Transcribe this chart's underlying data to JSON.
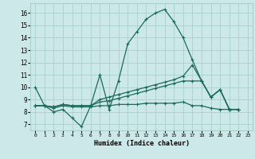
{
  "xlabel": "Humidex (Indice chaleur)",
  "bg_color": "#cce8e8",
  "grid_color": "#aacfcf",
  "line_color": "#1a6b5a",
  "xlim": [
    -0.5,
    23.5
  ],
  "ylim": [
    6.5,
    16.8
  ],
  "xticks": [
    0,
    1,
    2,
    3,
    4,
    5,
    6,
    7,
    8,
    9,
    10,
    11,
    12,
    13,
    14,
    15,
    16,
    17,
    18,
    19,
    20,
    21,
    22,
    23
  ],
  "yticks": [
    7,
    8,
    9,
    10,
    11,
    12,
    13,
    14,
    15,
    16
  ],
  "line1_x": [
    0,
    1,
    2,
    3,
    4,
    5,
    6,
    7,
    8,
    9,
    10,
    11,
    12,
    13,
    14,
    15,
    16,
    17,
    18,
    19,
    20,
    21,
    22
  ],
  "line1_y": [
    10.0,
    8.5,
    8.0,
    8.2,
    7.5,
    6.8,
    8.5,
    11.0,
    8.2,
    10.5,
    13.5,
    14.5,
    15.5,
    16.0,
    16.3,
    15.3,
    14.0,
    12.2,
    10.5,
    9.2,
    9.8,
    8.2,
    8.2
  ],
  "line2_x": [
    0,
    1,
    2,
    3,
    4,
    5,
    6,
    7,
    8,
    9,
    10,
    11,
    12,
    13,
    14,
    15,
    16,
    17,
    18,
    19,
    20,
    21,
    22
  ],
  "line2_y": [
    8.5,
    8.5,
    8.4,
    8.6,
    8.5,
    8.5,
    8.5,
    9.0,
    9.2,
    9.4,
    9.6,
    9.8,
    10.0,
    10.2,
    10.4,
    10.6,
    10.9,
    11.8,
    10.5,
    9.2,
    9.8,
    8.2,
    8.2
  ],
  "line3_x": [
    0,
    1,
    2,
    3,
    4,
    5,
    6,
    7,
    8,
    9,
    10,
    11,
    12,
    13,
    14,
    15,
    16,
    17,
    18,
    19,
    20,
    21,
    22
  ],
  "line3_y": [
    8.5,
    8.5,
    8.4,
    8.6,
    8.5,
    8.5,
    8.5,
    8.8,
    8.9,
    9.1,
    9.3,
    9.5,
    9.7,
    9.9,
    10.1,
    10.3,
    10.5,
    10.5,
    10.5,
    9.2,
    9.8,
    8.2,
    8.2
  ],
  "line4_x": [
    0,
    1,
    2,
    3,
    4,
    5,
    6,
    7,
    8,
    9,
    10,
    11,
    12,
    13,
    14,
    15,
    16,
    17,
    18,
    19,
    20,
    21,
    22
  ],
  "line4_y": [
    8.5,
    8.5,
    8.3,
    8.5,
    8.4,
    8.4,
    8.4,
    8.5,
    8.5,
    8.6,
    8.6,
    8.6,
    8.7,
    8.7,
    8.7,
    8.7,
    8.8,
    8.5,
    8.5,
    8.3,
    8.2,
    8.2,
    8.2
  ]
}
